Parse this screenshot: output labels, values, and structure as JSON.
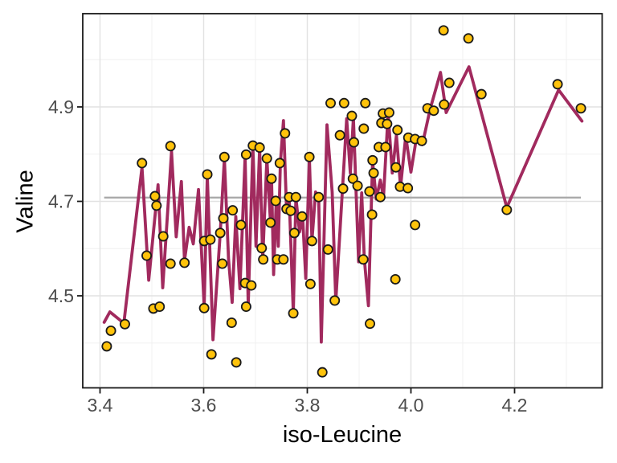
{
  "chart_data": {
    "type": "scatter",
    "title": "",
    "xlabel": "iso-Leucine",
    "ylabel": "Valine",
    "xlim": [
      3.3667,
      4.369
    ],
    "ylim": [
      4.305,
      5.097
    ],
    "grid": "on",
    "legend": "none",
    "x_major_ticks": [
      3.4,
      3.6,
      3.8,
      4.0,
      4.2
    ],
    "x_tick_labels": [
      "3.4",
      "3.6",
      "3.8",
      "4.0",
      "4.2"
    ],
    "x_minor_ticks": [
      3.5,
      3.7,
      3.9,
      4.1,
      4.3
    ],
    "y_major_ticks": [
      4.5,
      4.7,
      4.9
    ],
    "y_tick_labels": [
      "4.5",
      "4.7",
      "4.9"
    ],
    "y_minor_ticks": [
      4.4,
      4.6,
      4.8,
      5.0
    ],
    "reference_line": {
      "y": 4.708,
      "x_start": 3.408,
      "x_end": 4.328
    },
    "series": [
      {
        "name": "connected-line",
        "type": "line",
        "points": [
          [
            3.408,
            4.444
          ],
          [
            3.419,
            4.466
          ],
          [
            3.446,
            4.442
          ],
          [
            3.481,
            4.772
          ],
          [
            3.494,
            4.533
          ],
          [
            3.512,
            4.735
          ],
          [
            3.521,
            4.517
          ],
          [
            3.538,
            4.805
          ],
          [
            3.547,
            4.625
          ],
          [
            3.557,
            4.742
          ],
          [
            3.563,
            4.575
          ],
          [
            3.572,
            4.645
          ],
          [
            3.58,
            4.61
          ],
          [
            3.59,
            4.725
          ],
          [
            3.601,
            4.477
          ],
          [
            3.607,
            4.754
          ],
          [
            3.618,
            4.407
          ],
          [
            3.632,
            4.633
          ],
          [
            3.64,
            4.79
          ],
          [
            3.648,
            4.578
          ],
          [
            3.655,
            4.486
          ],
          [
            3.662,
            4.668
          ],
          [
            3.67,
            4.515
          ],
          [
            3.68,
            4.795
          ],
          [
            3.686,
            4.48
          ],
          [
            3.695,
            4.815
          ],
          [
            3.701,
            4.605
          ],
          [
            3.708,
            4.812
          ],
          [
            3.714,
            4.578
          ],
          [
            3.722,
            4.79
          ],
          [
            3.729,
            4.655
          ],
          [
            3.731,
            4.748
          ],
          [
            3.735,
            4.545
          ],
          [
            3.74,
            4.7
          ],
          [
            3.744,
            4.605
          ],
          [
            3.748,
            4.78
          ],
          [
            3.754,
            4.871
          ],
          [
            3.76,
            4.682
          ],
          [
            3.765,
            4.71
          ],
          [
            3.773,
            4.464
          ],
          [
            3.778,
            4.708
          ],
          [
            3.785,
            4.635
          ],
          [
            3.791,
            4.668
          ],
          [
            3.797,
            4.537
          ],
          [
            3.804,
            4.792
          ],
          [
            3.809,
            4.617
          ],
          [
            3.816,
            4.72
          ],
          [
            3.822,
            4.708
          ],
          [
            3.827,
            4.402
          ],
          [
            3.838,
            4.862
          ],
          [
            3.848,
            4.72
          ],
          [
            3.855,
            4.489
          ],
          [
            3.876,
            4.875
          ],
          [
            3.883,
            4.76
          ],
          [
            3.889,
            4.877
          ],
          [
            3.899,
            4.572
          ],
          [
            3.905,
            4.718
          ],
          [
            3.91,
            4.579
          ],
          [
            3.918,
            4.479
          ],
          [
            3.926,
            4.785
          ],
          [
            3.933,
            4.705
          ],
          [
            3.941,
            4.745
          ],
          [
            3.947,
            4.708
          ],
          [
            3.956,
            4.887
          ],
          [
            3.964,
            4.76
          ],
          [
            3.972,
            4.84
          ],
          [
            3.98,
            4.731
          ],
          [
            3.99,
            4.838
          ],
          [
            4.0,
            4.762
          ],
          [
            4.01,
            4.83
          ],
          [
            4.022,
            4.82
          ],
          [
            4.037,
            4.895
          ],
          [
            4.057,
            4.973
          ],
          [
            4.068,
            4.888
          ],
          [
            4.112,
            4.985
          ],
          [
            4.185,
            4.687
          ],
          [
            4.285,
            4.936
          ],
          [
            4.33,
            4.87
          ]
        ]
      },
      {
        "name": "scatter-points",
        "type": "scatter",
        "points": [
          [
            3.413,
            4.393
          ],
          [
            3.421,
            4.426
          ],
          [
            3.448,
            4.44
          ],
          [
            3.481,
            4.781
          ],
          [
            3.49,
            4.585
          ],
          [
            3.503,
            4.473
          ],
          [
            3.515,
            4.477
          ],
          [
            3.506,
            4.711
          ],
          [
            3.509,
            4.691
          ],
          [
            3.522,
            4.626
          ],
          [
            3.536,
            4.817
          ],
          [
            3.536,
            4.568
          ],
          [
            3.563,
            4.57
          ],
          [
            3.601,
            4.616
          ],
          [
            3.613,
            4.619
          ],
          [
            3.607,
            4.757
          ],
          [
            3.601,
            4.474
          ],
          [
            3.615,
            4.376
          ],
          [
            3.632,
            4.633
          ],
          [
            3.64,
            4.794
          ],
          [
            3.638,
            4.664
          ],
          [
            3.654,
            4.443
          ],
          [
            3.656,
            4.681
          ],
          [
            3.636,
            4.568
          ],
          [
            3.663,
            4.359
          ],
          [
            3.672,
            4.65
          ],
          [
            3.68,
            4.527
          ],
          [
            3.692,
            4.522
          ],
          [
            3.682,
            4.477
          ],
          [
            3.682,
            4.799
          ],
          [
            3.695,
            4.818
          ],
          [
            3.708,
            4.814
          ],
          [
            3.712,
            4.601
          ],
          [
            3.715,
            4.577
          ],
          [
            3.722,
            4.791
          ],
          [
            3.729,
            4.655
          ],
          [
            3.731,
            4.748
          ],
          [
            3.739,
            4.701
          ],
          [
            3.747,
            4.781
          ],
          [
            3.757,
            4.844
          ],
          [
            3.76,
            4.684
          ],
          [
            3.768,
            4.68
          ],
          [
            3.765,
            4.709
          ],
          [
            3.778,
            4.709
          ],
          [
            3.775,
            4.633
          ],
          [
            3.742,
            4.577
          ],
          [
            3.754,
            4.577
          ],
          [
            3.773,
            4.463
          ],
          [
            3.79,
            4.668
          ],
          [
            3.806,
            4.525
          ],
          [
            3.804,
            4.794
          ],
          [
            3.809,
            4.616
          ],
          [
            3.822,
            4.709
          ],
          [
            3.84,
            4.598
          ],
          [
            3.845,
            4.908
          ],
          [
            3.871,
            4.908
          ],
          [
            3.886,
            4.881
          ],
          [
            3.863,
            4.84
          ],
          [
            3.89,
            4.825
          ],
          [
            3.869,
            4.727
          ],
          [
            3.888,
            4.748
          ],
          [
            3.897,
            4.733
          ],
          [
            3.853,
            4.49
          ],
          [
            3.908,
            4.577
          ],
          [
            3.921,
            4.441
          ],
          [
            3.829,
            4.338
          ],
          [
            3.912,
            4.908
          ],
          [
            3.946,
            4.886
          ],
          [
            3.958,
            4.888
          ],
          [
            3.943,
            4.866
          ],
          [
            3.954,
            4.864
          ],
          [
            3.909,
            4.854
          ],
          [
            3.974,
            4.851
          ],
          [
            3.938,
            4.815
          ],
          [
            3.951,
            4.815
          ],
          [
            3.995,
            4.835
          ],
          [
            4.008,
            4.832
          ],
          [
            4.021,
            4.828
          ],
          [
            3.926,
            4.787
          ],
          [
            3.928,
            4.76
          ],
          [
            3.971,
            4.772
          ],
          [
            3.979,
            4.731
          ],
          [
            3.994,
            4.728
          ],
          [
            3.92,
            4.721
          ],
          [
            3.941,
            4.709
          ],
          [
            3.925,
            4.672
          ],
          [
            4.008,
            4.65
          ],
          [
            3.97,
            4.535
          ],
          [
            4.032,
            4.897
          ],
          [
            4.044,
            4.892
          ],
          [
            4.064,
            4.905
          ],
          [
            4.063,
            5.062
          ],
          [
            4.074,
            4.951
          ],
          [
            4.111,
            5.045
          ],
          [
            4.136,
            4.927
          ],
          [
            4.185,
            4.682
          ],
          [
            4.283,
            4.948
          ],
          [
            4.328,
            4.897
          ]
        ]
      }
    ],
    "colors": {
      "line": "#A12A5E",
      "point_fill": "#FFC30B",
      "point_stroke": "#1A1A1A",
      "reference_line": "#AAAAAA",
      "grid_major": "#E2E2E2",
      "grid_minor": "#F0F0F0",
      "panel_border": "#1A1A1A",
      "tick_label": "#4D4D4D",
      "axis_title": "#000000",
      "background": "#FFFFFF"
    }
  }
}
